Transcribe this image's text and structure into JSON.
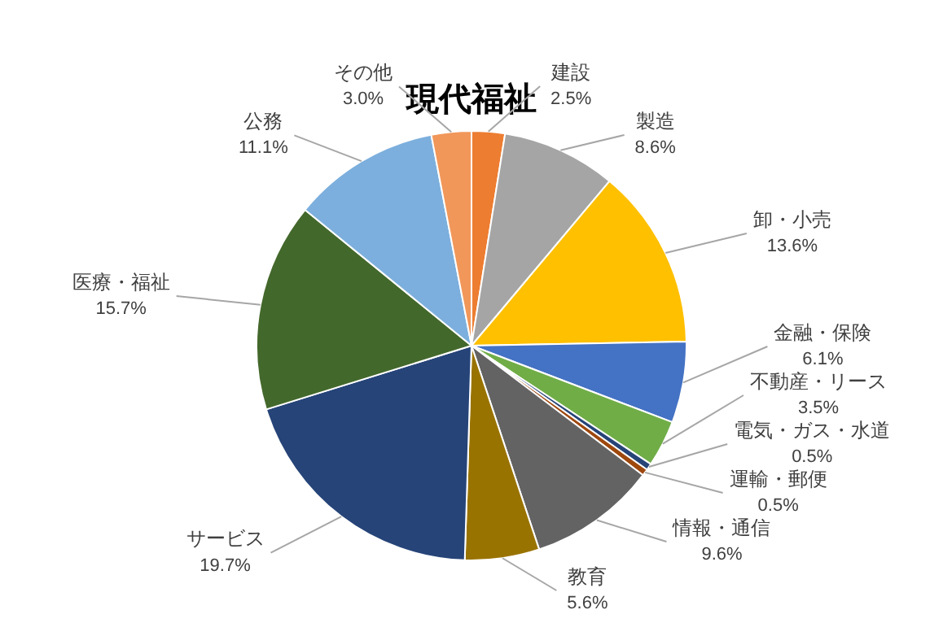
{
  "chart_data": {
    "type": "pie",
    "title": "現代福祉",
    "categories": [
      "建設",
      "製造",
      "卸・小売",
      "金融・保険",
      "不動産・リース",
      "電気・ガス・水道",
      "運輸・郵便",
      "情報・通信",
      "教育",
      "サービス",
      "医療・福祉",
      "公務",
      "その他"
    ],
    "values": [
      2.5,
      8.6,
      13.6,
      6.1,
      3.5,
      0.5,
      0.5,
      9.6,
      5.6,
      19.7,
      15.7,
      11.1,
      3.0
    ],
    "value_labels": [
      "2.5%",
      "8.6%",
      "13.6%",
      "6.1%",
      "3.5%",
      "0.5%",
      "0.5%",
      "9.6%",
      "5.6%",
      "19.7%",
      "15.7%",
      "11.1%",
      "3.0%"
    ],
    "colors": [
      "#ed7d31",
      "#a5a5a5",
      "#ffc000",
      "#4472c4",
      "#70ad47",
      "#264478",
      "#9e480e",
      "#636363",
      "#997300",
      "#264478",
      "#43682b",
      "#7cafdd",
      "#f1975a"
    ],
    "legend": false
  }
}
